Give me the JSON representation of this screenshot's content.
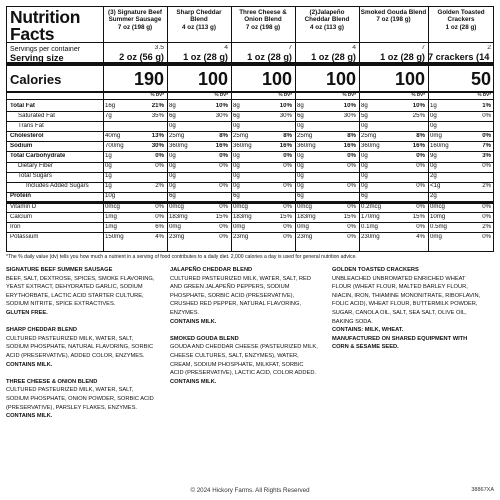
{
  "panel": {
    "title_line1": "Nutrition",
    "title_line2": "Facts",
    "servings_label": "Servings per container",
    "serving_size_label": "Serving size",
    "calories_label": "Calories",
    "dv_label": "% DV*",
    "products": [
      {
        "name": "(3) Signature Beef Summer Sausage",
        "weight": "7 oz (198 g)",
        "servings": "3.5",
        "serving_size": "2 oz (56 g)",
        "calories": "190"
      },
      {
        "name": "Sharp Cheddar Blend",
        "weight": "4 oz (113 g)",
        "servings": "4",
        "serving_size": "1 oz (28 g)",
        "calories": "100"
      },
      {
        "name": "Three Cheese & Onion Blend",
        "weight": "7 oz (198 g)",
        "servings": "7",
        "serving_size": "1 oz (28 g)",
        "calories": "100"
      },
      {
        "name": "(2)Jalapeño Cheddar Blend",
        "weight": "4 oz (113 g)",
        "servings": "4",
        "serving_size": "1 oz (28 g)",
        "calories": "100"
      },
      {
        "name": "Smoked Gouda Blend",
        "weight": "7 oz (198 g)",
        "servings": "7",
        "serving_size": "1 oz (28 g)",
        "calories": "100"
      },
      {
        "name": "Golden Toasted Crackers",
        "weight": "1 oz (28 g)",
        "servings": "2",
        "serving_size": "7 crackers (14 g)",
        "calories": "50"
      }
    ],
    "rows": [
      {
        "label": "Total Fat",
        "bold": true,
        "indent": 0,
        "vals": [
          [
            "16g",
            "21%"
          ],
          [
            "8g",
            "10%"
          ],
          [
            "8g",
            "10%"
          ],
          [
            "8g",
            "10%"
          ],
          [
            "8g",
            "10%"
          ],
          [
            "1g",
            "1%"
          ]
        ]
      },
      {
        "label": "Saturated Fat",
        "bold": false,
        "indent": 1,
        "vals": [
          [
            "7g",
            "35%"
          ],
          [
            "6g",
            "30%"
          ],
          [
            "6g",
            "30%"
          ],
          [
            "6g",
            "30%"
          ],
          [
            "5g",
            "25%"
          ],
          [
            "0g",
            "0%"
          ]
        ]
      },
      {
        "label": "Trans Fat",
        "bold": false,
        "indent": 1,
        "vals": [
          [
            "",
            ""
          ],
          [
            "0g",
            ""
          ],
          [
            "0g",
            ""
          ],
          [
            "0g",
            ""
          ],
          [
            "0g",
            ""
          ],
          [
            "0g",
            ""
          ]
        ]
      },
      {
        "label": "Cholesterol",
        "bold": true,
        "indent": 0,
        "vals": [
          [
            "40mg",
            "13%"
          ],
          [
            "25mg",
            "8%"
          ],
          [
            "25mg",
            "8%"
          ],
          [
            "25mg",
            "8%"
          ],
          [
            "25mg",
            "8%"
          ],
          [
            "0mg",
            "0%"
          ]
        ]
      },
      {
        "label": "Sodium",
        "bold": true,
        "indent": 0,
        "vals": [
          [
            "700mg",
            "30%"
          ],
          [
            "360mg",
            "16%"
          ],
          [
            "360mg",
            "16%"
          ],
          [
            "360mg",
            "16%"
          ],
          [
            "360mg",
            "16%"
          ],
          [
            "160mg",
            "7%"
          ]
        ]
      },
      {
        "label": "Total Carbohydrate",
        "bold": true,
        "indent": 0,
        "vals": [
          [
            "1g",
            "0%"
          ],
          [
            "0g",
            "0%"
          ],
          [
            "0g",
            "0%"
          ],
          [
            "0g",
            "0%"
          ],
          [
            "0g",
            "0%"
          ],
          [
            "9g",
            "3%"
          ]
        ]
      },
      {
        "label": "Dietary Fiber",
        "bold": false,
        "indent": 1,
        "vals": [
          [
            "0g",
            "0%"
          ],
          [
            "0g",
            "0%"
          ],
          [
            "0g",
            "0%"
          ],
          [
            "0g",
            "0%"
          ],
          [
            "0g",
            "0%"
          ],
          [
            "0g",
            "0%"
          ]
        ]
      },
      {
        "label": "Total Sugars",
        "bold": false,
        "indent": 1,
        "vals": [
          [
            "1g",
            ""
          ],
          [
            "0g",
            ""
          ],
          [
            "0g",
            ""
          ],
          [
            "0g",
            ""
          ],
          [
            "0g",
            ""
          ],
          [
            "2g",
            ""
          ]
        ]
      },
      {
        "label": "Includes Added Sugars",
        "bold": false,
        "indent": 2,
        "vals": [
          [
            "1g",
            "2%"
          ],
          [
            "0g",
            "0%"
          ],
          [
            "0g",
            "0%"
          ],
          [
            "0g",
            "0%"
          ],
          [
            "0g",
            "0%"
          ],
          [
            "<1g",
            "2%"
          ]
        ]
      },
      {
        "label": "Protein",
        "bold": true,
        "indent": 0,
        "vals": [
          [
            "10g",
            ""
          ],
          [
            "6g",
            ""
          ],
          [
            "6g",
            ""
          ],
          [
            "6g",
            ""
          ],
          [
            "6g",
            ""
          ],
          [
            "2g",
            ""
          ]
        ]
      },
      {
        "label": "Vitamin D",
        "bold": false,
        "indent": 0,
        "vals": [
          [
            "0mcg",
            "0%"
          ],
          [
            "0mcg",
            "0%"
          ],
          [
            "0mcg",
            "0%"
          ],
          [
            "0mcg",
            "0%"
          ],
          [
            "0.2mcg",
            "0%"
          ],
          [
            "0mcg",
            "0%"
          ]
        ]
      },
      {
        "label": "Calcium",
        "bold": false,
        "indent": 0,
        "vals": [
          [
            "1mg",
            "0%"
          ],
          [
            "183mg",
            "15%"
          ],
          [
            "183mg",
            "15%"
          ],
          [
            "183mg",
            "15%"
          ],
          [
            "170mg",
            "15%"
          ],
          [
            "10mg",
            "0%"
          ]
        ]
      },
      {
        "label": "Iron",
        "bold": false,
        "indent": 0,
        "vals": [
          [
            "1mg",
            "6%"
          ],
          [
            "0mg",
            "0%"
          ],
          [
            "0mg",
            "0%"
          ],
          [
            "0mg",
            "0%"
          ],
          [
            "0.1mg",
            "0%"
          ],
          [
            "0.5mg",
            "2%"
          ]
        ]
      },
      {
        "label": "Potassium",
        "bold": false,
        "indent": 0,
        "vals": [
          [
            "150mg",
            "4%"
          ],
          [
            "23mg",
            "0%"
          ],
          [
            "23mg",
            "0%"
          ],
          [
            "23mg",
            "0%"
          ],
          [
            "230mg",
            "4%"
          ],
          [
            "0mg",
            "0%"
          ]
        ]
      }
    ]
  },
  "footnote": "*The % daily value (dv) tells you how much a nutrient in a serving of food contributes to a daily diet. 2,000 calories a day is used for general nutrition advice.",
  "ingredients": [
    [
      {
        "title": "SIGNATURE BEEF SUMMER SAUSAGE",
        "lines": [
          "BEEF, SALT, DEXTROSE, SPICES, SMOKE FLAVORING,",
          "YEAST EXTRACT, DEHYDRATED GARLIC, SODIUM",
          "ERYTHORBATE, LACTIC ACID STARTER CULTURE,",
          "SODIUM NITRITE, SPICE EXTRACTIVES."
        ],
        "contains": [
          "GLUTEN FREE."
        ]
      },
      {
        "title": "SHARP CHEDDAR BLEND",
        "lines": [
          "CULTURED PASTEURIZED MILK, WATER, SALT,",
          "SODIUM PHOSPHATE, NATURAL FLAVORING, SORBIC",
          "ACID (PRESERVATIVE), ADDED COLOR, ENZYMES."
        ],
        "contains": [
          "CONTAINS MILK."
        ]
      },
      {
        "title": "THREE CHEESE & ONION BLEND",
        "lines": [
          "CULTURED PASTEURIZED MILK, WATER, SALT,",
          "SODIUM PHOSPHATE, ONION POWDER, SORBIC ACID",
          "(PRESERVATIVE), PARSLEY FLAKES, ENZYMES."
        ],
        "contains": [
          "CONTAINS MILK."
        ]
      }
    ],
    [
      {
        "title": "JALAPEÑO CHEDDAR BLEND",
        "lines": [
          "CULTURED PASTEURIZED MILK, WATER, SALT, RED",
          "AND GREEN JALAPEÑO PEPPERS, SODIUM",
          "PHOSPHATE, SORBIC ACID (PRESERVATIVE),",
          "CRUSHED RED PEPPER, NATURAL FLAVORING,",
          "ENZYMES."
        ],
        "contains": [
          "CONTAINS MILK."
        ]
      },
      {
        "title": "SMOKED GOUDA BLEND",
        "lines": [
          "GOUDA AND CHEDDAR CHEESE (PASTEURIZED MILK,",
          "CHEESE CULTURES, SALT, ENZYMES), WATER,",
          "CREAM, SODIUM PHOSPHATE, MILKFAT, SORBIC",
          "ACID (PRESERVATIVE), LACTIC ACID, COLOR ADDED."
        ],
        "contains": [
          "CONTAINS MILK."
        ]
      }
    ],
    [
      {
        "title": "GOLDEN TOASTED CRACKERS",
        "lines": [
          "UNBLEACHED UNBROMATED ENRICHED WHEAT",
          "FLOUR (WHEAT FLOUR, MALTED BARLEY FLOUR,",
          "NIACIN, IRON, THIAMINE MONONITRATE, RIBOFLAVIN,",
          "FOLIC ACID), WHEAT FLOUR, BUTTERMILK POWDER,",
          "SUGAR, CANOLA OIL, SALT, SEA SALT, OLIVE OIL,",
          "BAKING SODA."
        ],
        "contains": [
          "CONTAINS: MILK, WHEAT.",
          "MANUFACTURED ON SHARED EQUIPMENT WITH",
          "CORN & SESAME SEED."
        ]
      }
    ]
  ],
  "copyright": "© 2024 Hickory Farms. All Rights Reserved",
  "code": "38867XA"
}
